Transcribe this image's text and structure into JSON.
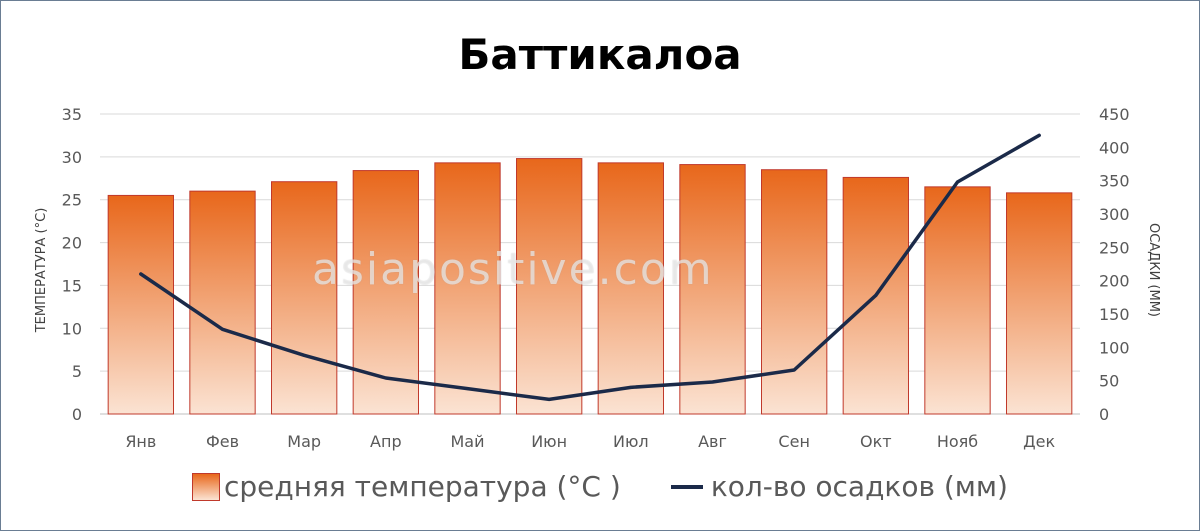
{
  "chart_data": {
    "type": "bar+line",
    "title": "Баттикалоа",
    "watermark": "asiapositive.com",
    "categories": [
      "Янв",
      "Фев",
      "Мар",
      "Апр",
      "Май",
      "Июн",
      "Июл",
      "Авг",
      "Сен",
      "Окт",
      "Нояб",
      "Дек"
    ],
    "series": [
      {
        "name": "средняя температура (°C )",
        "type": "bar",
        "axis": "left",
        "values": [
          25.5,
          26.0,
          27.1,
          28.4,
          29.3,
          29.8,
          29.3,
          29.1,
          28.5,
          27.6,
          26.5,
          25.8
        ]
      },
      {
        "name": "кол-во осадков (мм)",
        "type": "line",
        "axis": "right",
        "values": [
          210,
          127,
          88,
          54,
          38,
          22,
          40,
          48,
          66,
          178,
          348,
          418
        ]
      }
    ],
    "ylabel_left": "ТЕМПЕРАТУРА (°C)",
    "ylabel_right": "ОСАДКИ (ММ)",
    "ylim_left": [
      0,
      35
    ],
    "ylim_right": [
      0,
      450
    ],
    "yticks_left": [
      0,
      5,
      10,
      15,
      20,
      25,
      30,
      35
    ],
    "yticks_right": [
      0,
      50,
      100,
      150,
      200,
      250,
      300,
      350,
      400,
      450
    ],
    "grid": true,
    "legend_position": "bottom",
    "colors": {
      "bar_top": "#e8671b",
      "bar_bottom": "#fbe3d3",
      "bar_border": "#c0392b",
      "line": "#1b2a49",
      "grid": "#d9d9d9"
    }
  }
}
